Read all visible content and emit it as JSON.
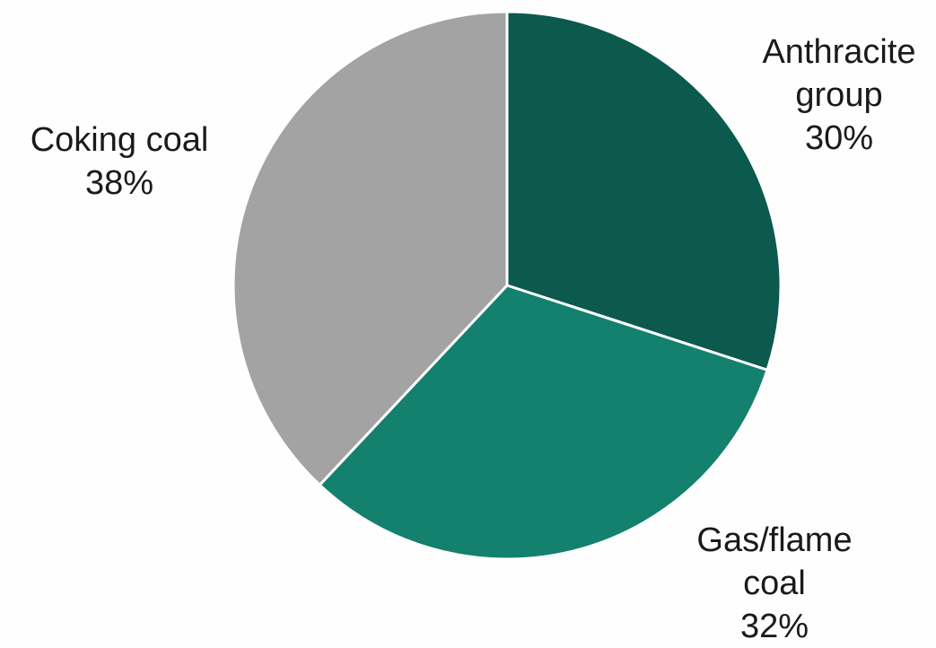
{
  "chart_data": {
    "type": "pie",
    "title": "",
    "slices": [
      {
        "label_lines": [
          "Anthracite",
          "group"
        ],
        "percent_label": "30%",
        "value": 30,
        "color": "#0c5a4d"
      },
      {
        "label_lines": [
          "Gas/flame",
          "coal"
        ],
        "percent_label": "32%",
        "value": 32,
        "color": "#14806e"
      },
      {
        "label_lines": [
          "Coking coal"
        ],
        "percent_label": "38%",
        "value": 38,
        "color": "#a3a3a3"
      }
    ],
    "start_angle_deg": 0,
    "direction": "clockwise",
    "slice_border_color": "#ffffff",
    "legend": "none"
  }
}
